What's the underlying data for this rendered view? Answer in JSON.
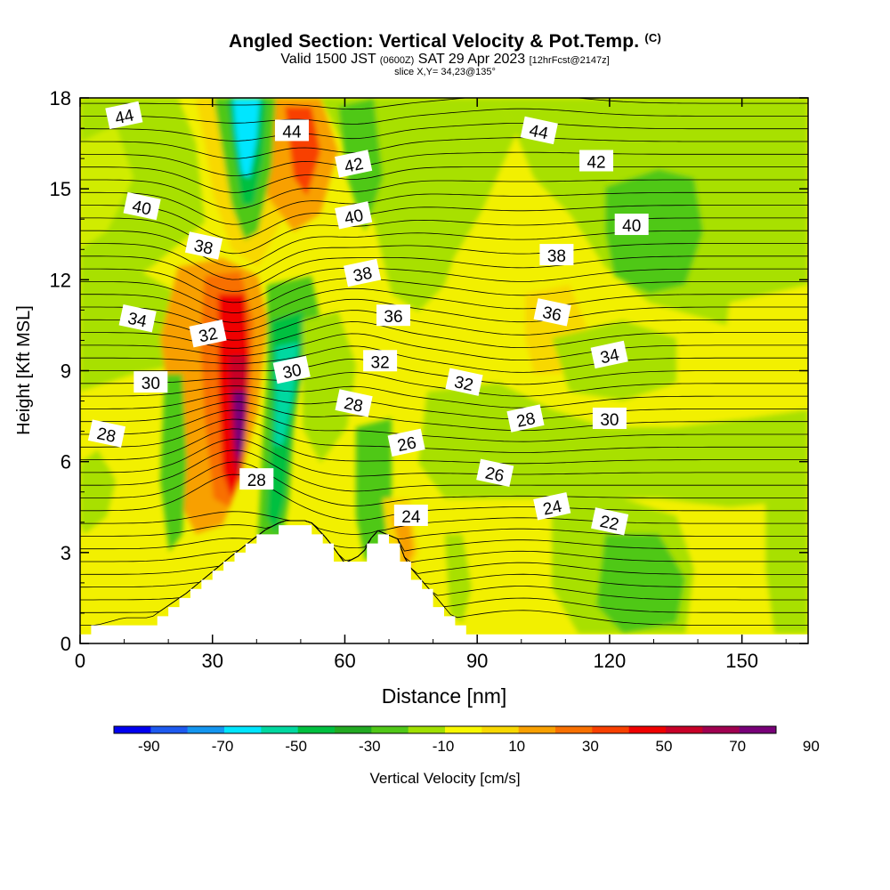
{
  "header": {
    "title": "Angled Section: Vertical Velocity & Pot.Temp.",
    "title_mark": "(C)",
    "valid_prefix": "Valid 1500 JST",
    "valid_utc": "(0600Z)",
    "valid_date": "SAT 29 Apr 2023",
    "forecast": "[12hrFcst@2147z]",
    "slice": "slice X,Y= 34,23@135°"
  },
  "chart_data": {
    "type": "contour",
    "xlabel": "Distance [nm]",
    "ylabel": "Height [Kft MSL]",
    "xlim": [
      0,
      165
    ],
    "ylim": [
      0,
      18
    ],
    "x_ticks": [
      0,
      30,
      60,
      90,
      120,
      150
    ],
    "y_ticks": [
      0,
      3,
      6,
      9,
      12,
      15,
      18
    ],
    "colorbar": {
      "label": "Vertical Velocity [cm/s]",
      "tick_labels": [
        "-90",
        "-70",
        "-50",
        "-30",
        "-10",
        "10",
        "30",
        "50",
        "70",
        "90"
      ],
      "colors": [
        "#0000f0",
        "#1e5af0",
        "#1496f0",
        "#00e6ff",
        "#00d8a0",
        "#00c040",
        "#22aa22",
        "#50c818",
        "#a0e000",
        "#f8f800",
        "#f8d800",
        "#f8a000",
        "#f87000",
        "#f84000",
        "#f00000",
        "#c80028",
        "#a00050",
        "#780078"
      ]
    },
    "terrain_profile_kft": [
      [
        0,
        0.3
      ],
      [
        10,
        0.7
      ],
      [
        16,
        0.7
      ],
      [
        24,
        1.5
      ],
      [
        34,
        2.7
      ],
      [
        42,
        3.6
      ],
      [
        46,
        3.9
      ],
      [
        52,
        3.9
      ],
      [
        56,
        3.3
      ],
      [
        60,
        2.5
      ],
      [
        64,
        2.8
      ],
      [
        67,
        3.6
      ],
      [
        72,
        3.3
      ],
      [
        74,
        2.5
      ],
      [
        80,
        1.5
      ],
      [
        84,
        0.8
      ],
      [
        90,
        0.3
      ],
      [
        165,
        0.3
      ]
    ],
    "theta_contour_labels": [
      {
        "text": "44",
        "x": 10,
        "y": 17.4
      },
      {
        "text": "44",
        "x": 48,
        "y": 16.9
      },
      {
        "text": "44",
        "x": 104,
        "y": 16.9
      },
      {
        "text": "42",
        "x": 62,
        "y": 15.8
      },
      {
        "text": "42",
        "x": 117,
        "y": 15.9
      },
      {
        "text": "40",
        "x": 14,
        "y": 14.4
      },
      {
        "text": "40",
        "x": 62,
        "y": 14.1
      },
      {
        "text": "40",
        "x": 125,
        "y": 13.8
      },
      {
        "text": "38",
        "x": 28,
        "y": 13.1
      },
      {
        "text": "38",
        "x": 64,
        "y": 12.2
      },
      {
        "text": "38",
        "x": 108,
        "y": 12.8
      },
      {
        "text": "34",
        "x": 13,
        "y": 10.7
      },
      {
        "text": "32",
        "x": 29,
        "y": 10.2
      },
      {
        "text": "36",
        "x": 71,
        "y": 10.8
      },
      {
        "text": "36",
        "x": 107,
        "y": 10.9
      },
      {
        "text": "30",
        "x": 48,
        "y": 9.0
      },
      {
        "text": "32",
        "x": 68,
        "y": 9.3
      },
      {
        "text": "32",
        "x": 87,
        "y": 8.6
      },
      {
        "text": "34",
        "x": 120,
        "y": 9.5
      },
      {
        "text": "30",
        "x": 16,
        "y": 8.6
      },
      {
        "text": "28",
        "x": 62,
        "y": 7.9
      },
      {
        "text": "28",
        "x": 101,
        "y": 7.4
      },
      {
        "text": "30",
        "x": 120,
        "y": 7.4
      },
      {
        "text": "28",
        "x": 6,
        "y": 6.9
      },
      {
        "text": "26",
        "x": 74,
        "y": 6.6
      },
      {
        "text": "28",
        "x": 40,
        "y": 5.4
      },
      {
        "text": "26",
        "x": 94,
        "y": 5.6
      },
      {
        "text": "24",
        "x": 107,
        "y": 4.5
      },
      {
        "text": "24",
        "x": 75,
        "y": 4.2
      },
      {
        "text": "22",
        "x": 120,
        "y": 4.0
      }
    ]
  }
}
